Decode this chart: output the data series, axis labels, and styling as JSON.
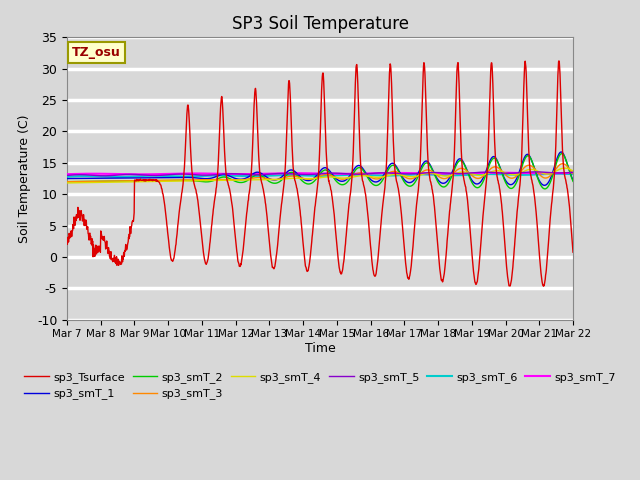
{
  "title": "SP3 Soil Temperature",
  "xlabel": "Time",
  "ylabel": "Soil Temperature (C)",
  "ylim": [
    -10,
    35
  ],
  "xlim_days": [
    0,
    15
  ],
  "annotation": "TZ_osu",
  "background_color": "#d8d8d8",
  "plot_bg_color": "#d8d8d8",
  "grid_color": "white",
  "series": {
    "sp3_Tsurface": {
      "color": "#dd0000",
      "lw": 1.0
    },
    "sp3_smT_1": {
      "color": "#0000dd",
      "lw": 1.0
    },
    "sp3_smT_2": {
      "color": "#00cc00",
      "lw": 1.0
    },
    "sp3_smT_3": {
      "color": "#ff8800",
      "lw": 1.0
    },
    "sp3_smT_4": {
      "color": "#dddd00",
      "lw": 1.0
    },
    "sp3_smT_5": {
      "color": "#8800cc",
      "lw": 1.0
    },
    "sp3_smT_6": {
      "color": "#00cccc",
      "lw": 1.5
    },
    "sp3_smT_7": {
      "color": "#ff00ff",
      "lw": 1.5
    }
  },
  "xtick_labels": [
    "Mar 7",
    "Mar 8",
    "Mar 9",
    "Mar 10",
    "Mar 11",
    "Mar 12",
    "Mar 13",
    "Mar 14",
    "Mar 15",
    "Mar 16",
    "Mar 17",
    "Mar 18",
    "Mar 19",
    "Mar 20",
    "Mar 21",
    "Mar 22"
  ],
  "xtick_positions": [
    0,
    1,
    2,
    3,
    4,
    5,
    6,
    7,
    8,
    9,
    10,
    11,
    12,
    13,
    14,
    15
  ],
  "ytick_labels": [
    "-10",
    "-5",
    "0",
    "5",
    "10",
    "15",
    "20",
    "25",
    "30",
    "35"
  ],
  "ytick_positions": [
    -10,
    -5,
    0,
    5,
    10,
    15,
    20,
    25,
    30,
    35
  ]
}
